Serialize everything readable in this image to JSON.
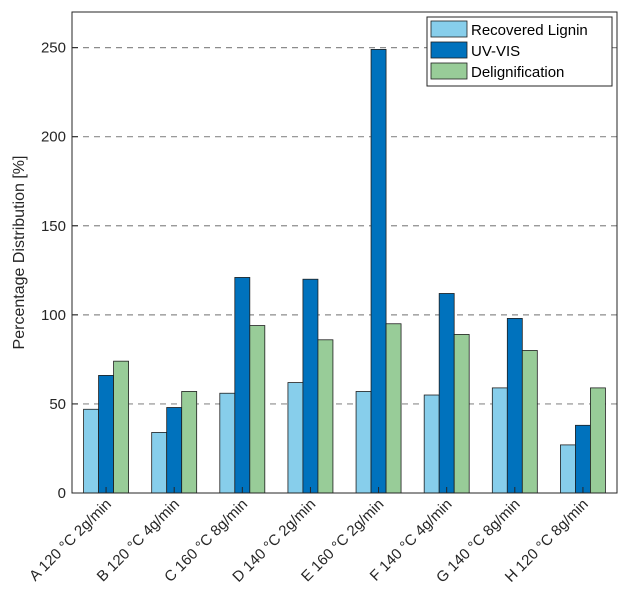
{
  "chart_data": {
    "type": "bar",
    "title": "",
    "xlabel": "",
    "ylabel": "Percentage Distribution [%]",
    "ylim": [
      0,
      270
    ],
    "yticks": [
      0,
      50,
      100,
      150,
      200,
      250
    ],
    "grid": "y-dashed",
    "legend_position": "top-right",
    "categories": [
      "A 120 °C 2g/min",
      "B 120 °C 4g/min",
      "C 160 °C 8g/min",
      "D 140 °C 2g/min",
      "E 160 °C 2g/min",
      "F 140 °C 4g/min",
      "G 140 °C 8g/min",
      "H 120 °C 8g/min"
    ],
    "series": [
      {
        "name": "Recovered Lignin",
        "color": "#87CEEB",
        "values": [
          47,
          34,
          56,
          62,
          57,
          55,
          59,
          27
        ]
      },
      {
        "name": "UV-VIS",
        "color": "#0072BD",
        "values": [
          66,
          48,
          121,
          120,
          249,
          112,
          98,
          38
        ]
      },
      {
        "name": "Delignification",
        "color": "#98CC98",
        "values": [
          74,
          57,
          94,
          86,
          95,
          89,
          80,
          59
        ]
      }
    ]
  }
}
